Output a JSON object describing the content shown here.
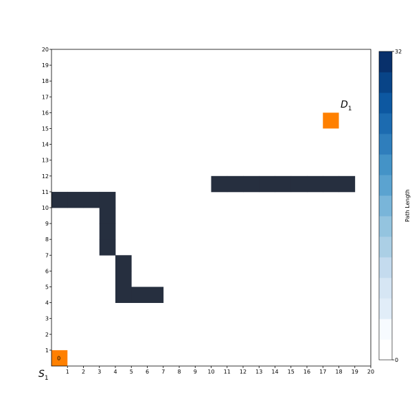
{
  "chart_data": {
    "type": "heatmap",
    "grid_size": [
      20,
      20
    ],
    "xlim": [
      0,
      20
    ],
    "ylim": [
      0,
      20
    ],
    "x_ticks": [
      "1",
      "2",
      "3",
      "4",
      "5",
      "6",
      "7",
      "8",
      "9",
      "10",
      "11",
      "12",
      "13",
      "14",
      "15",
      "16",
      "17",
      "18",
      "19",
      "20"
    ],
    "y_ticks": [
      "1",
      "2",
      "3",
      "4",
      "5",
      "6",
      "7",
      "8",
      "9",
      "10",
      "11",
      "12",
      "13",
      "14",
      "15",
      "16",
      "17",
      "18",
      "19",
      "20"
    ],
    "grid": false,
    "obstacle_color": "#262f3f",
    "endpoint_color": "#ff8000",
    "obstacles": [
      [
        0,
        10
      ],
      [
        1,
        10
      ],
      [
        2,
        10
      ],
      [
        3,
        10
      ],
      [
        3,
        9
      ],
      [
        3,
        8
      ],
      [
        3,
        7
      ],
      [
        4,
        6
      ],
      [
        4,
        5
      ],
      [
        4,
        4
      ],
      [
        5,
        4
      ],
      [
        6,
        4
      ],
      [
        10,
        11
      ],
      [
        11,
        11
      ],
      [
        12,
        11
      ],
      [
        13,
        11
      ],
      [
        14,
        11
      ],
      [
        15,
        11
      ],
      [
        16,
        11
      ],
      [
        17,
        11
      ],
      [
        18,
        11
      ]
    ],
    "visited_cells": [
      {
        "x": 0,
        "y": 0,
        "value": 0
      }
    ],
    "start": {
      "x": 0,
      "y": 0,
      "label_base": "S",
      "label_sub": "1",
      "value_label": "0"
    },
    "destination": {
      "x": 17,
      "y": 15,
      "label_base": "D",
      "label_sub": "1"
    },
    "colorbar": {
      "label": "Path Length",
      "min": 0,
      "max": 32,
      "min_label": "0",
      "max_label": "32",
      "colors": [
        "#ffffff",
        "#f7fbff",
        "#e1edf8",
        "#d6e6f4",
        "#c4dbee",
        "#abcfe5",
        "#94c4df",
        "#79b5d9",
        "#5ba3d0",
        "#4493c7",
        "#2f7ebc",
        "#1c6bb0",
        "#0d58a1",
        "#084487",
        "#08306b"
      ]
    }
  }
}
